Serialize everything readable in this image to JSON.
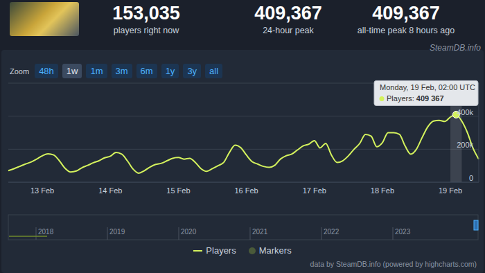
{
  "header": {
    "stats": [
      {
        "value": "153,035",
        "label": "players right now"
      },
      {
        "value": "409,367",
        "label": "24-hour peak"
      },
      {
        "value": "409,367",
        "label": "all-time peak 8 hours ago"
      }
    ]
  },
  "watermark": "SteamDB.info",
  "zoom": {
    "label": "Zoom",
    "buttons": [
      "48h",
      "1w",
      "1m",
      "3m",
      "6m",
      "1y",
      "3y",
      "all"
    ],
    "active": "1w"
  },
  "chart_data": {
    "type": "line",
    "categories": [
      null,
      null,
      null,
      null,
      null,
      null,
      "13 Feb",
      null,
      null,
      null,
      null,
      null,
      null,
      null,
      null,
      null,
      null,
      null,
      "14 Feb",
      null,
      null,
      null,
      null,
      null,
      null,
      null,
      null,
      null,
      null,
      null,
      "15 Feb",
      null,
      null,
      null,
      null,
      null,
      null,
      null,
      null,
      null,
      null,
      null,
      "16 Feb",
      null,
      null,
      null,
      null,
      null,
      null,
      null,
      null,
      null,
      null,
      null,
      "17 Feb",
      null,
      null,
      null,
      null,
      null,
      null,
      null,
      null,
      null,
      null,
      null,
      "18 Feb",
      null,
      null,
      null,
      null,
      null,
      null,
      null,
      null,
      null,
      null,
      null,
      "19 Feb",
      null,
      null,
      null,
      null,
      null
    ],
    "series": [
      {
        "name": "Players",
        "color": "#d4f25d",
        "values": [
          70000,
          82000,
          96000,
          110000,
          122000,
          140000,
          160000,
          172000,
          165000,
          130000,
          85000,
          62000,
          68000,
          88000,
          102000,
          118000,
          130000,
          148000,
          158000,
          180000,
          170000,
          130000,
          80000,
          55000,
          70000,
          92000,
          108000,
          115000,
          130000,
          145000,
          150000,
          140000,
          145000,
          120000,
          82000,
          66000,
          82000,
          100000,
          120000,
          180000,
          225000,
          210000,
          165000,
          125000,
          110000,
          96000,
          90000,
          102000,
          140000,
          160000,
          170000,
          195000,
          220000,
          230000,
          252000,
          208000,
          235000,
          165000,
          120000,
          130000,
          160000,
          200000,
          235000,
          290000,
          280000,
          215000,
          240000,
          300000,
          300000,
          290000,
          220000,
          170000,
          200000,
          270000,
          335000,
          370000,
          375000,
          368000,
          395000,
          409367,
          370000,
          300000,
          205000,
          140000
        ]
      }
    ],
    "ylim": [
      0,
      600000
    ],
    "yticks": [
      0,
      {
        "value": 200000,
        "label": "200k"
      },
      {
        "value": 400000,
        "label": "400k"
      }
    ],
    "grid": true,
    "legend": "bottom",
    "markers_label": "Markers",
    "tooltip": {
      "title": "Monday, 19 Feb, 02:00 UTC",
      "label": "Players:",
      "value": 409367,
      "value_label": "409 367"
    }
  },
  "navigator": {
    "labels": [
      "2018",
      "2019",
      "2020",
      "2021",
      "2022",
      "2023"
    ]
  },
  "credit": "data by SteamDB.info (powered by highcharts.com)"
}
